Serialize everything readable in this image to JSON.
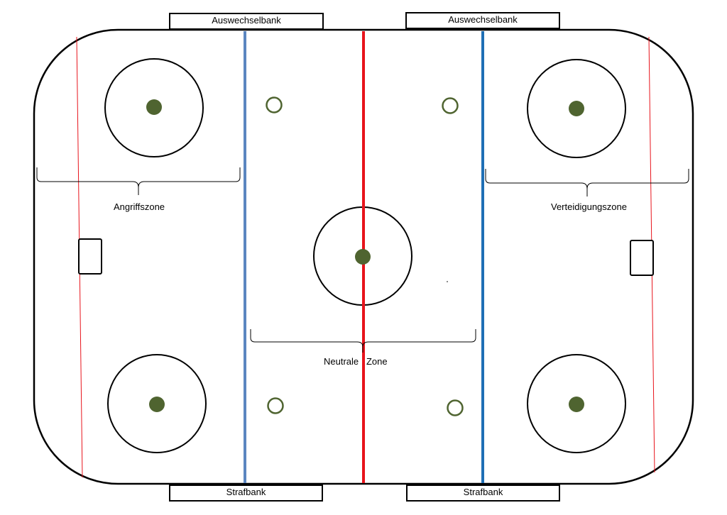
{
  "benches": {
    "top_left": "Auswechselbank",
    "top_right": "Auswechselbank",
    "bottom_left": "Strafbank",
    "bottom_right": "Strafbank"
  },
  "zones": {
    "attack": "Angriffszone",
    "defense": "Verteidigungszone",
    "neutral": "Neutrale   Zone"
  },
  "colors": {
    "center_line": "#e8141c",
    "blue_line_left": "#5b86c0",
    "blue_line_right": "#1f6fb5",
    "goal_line": "#e8141c",
    "faceoff_dot": "#4f6430",
    "neutral_dot_ring": "#4f6430",
    "boards": "#000000"
  }
}
